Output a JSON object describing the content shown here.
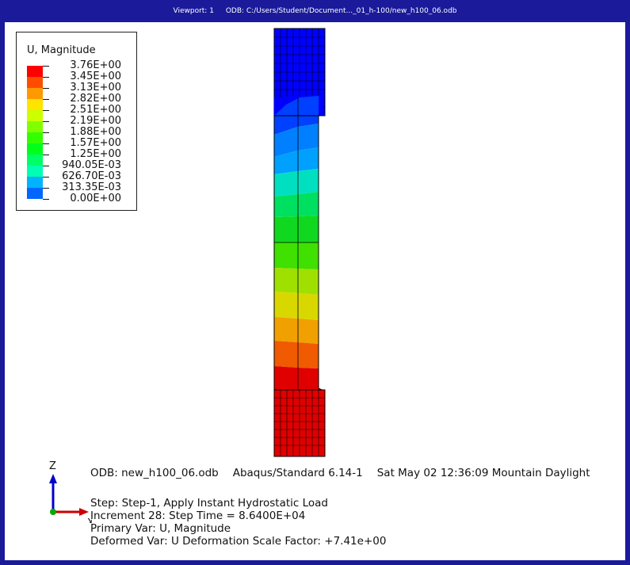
{
  "titlebar": {
    "viewport": "Viewport: 1",
    "odb_path": "ODB: C:/Users/Student/Document..._01_h-100/new_h100_06.odb"
  },
  "legend": {
    "title": "U, Magnitude",
    "labels": [
      "3.76E+00",
      "3.45E+00",
      "3.13E+00",
      "2.82E+00",
      "2.51E+00",
      "2.19E+00",
      "1.88E+00",
      "1.57E+00",
      "1.25E+00",
      "940.05E-03",
      "626.70E-03",
      "313.35E-03",
      "0.00E+00"
    ],
    "colors": [
      "#ff0000",
      "#ff4d00",
      "#ff9900",
      "#ffe400",
      "#ccff00",
      "#80ff00",
      "#33ff00",
      "#00ff1a",
      "#00ff66",
      "#00ffb3",
      "#00b3ff",
      "#0066ff",
      "#0000ff"
    ]
  },
  "info": {
    "odb": "ODB: new_h100_06.odb",
    "solver": "Abaqus/Standard 6.14-1",
    "date": "Sat May 02 12:36:09 Mountain Daylight",
    "step": "Step: Step-1, Apply Instant Hydrostatic Load",
    "increment": "Increment     28: Step Time =    8.6400E+04",
    "primary_var": "Primary Var: U, Magnitude",
    "deformed_var": "Deformed Var: U   Deformation Scale Factor: +7.41e+00"
  },
  "triad": {
    "z_label": "Z",
    "x_label": "X"
  }
}
